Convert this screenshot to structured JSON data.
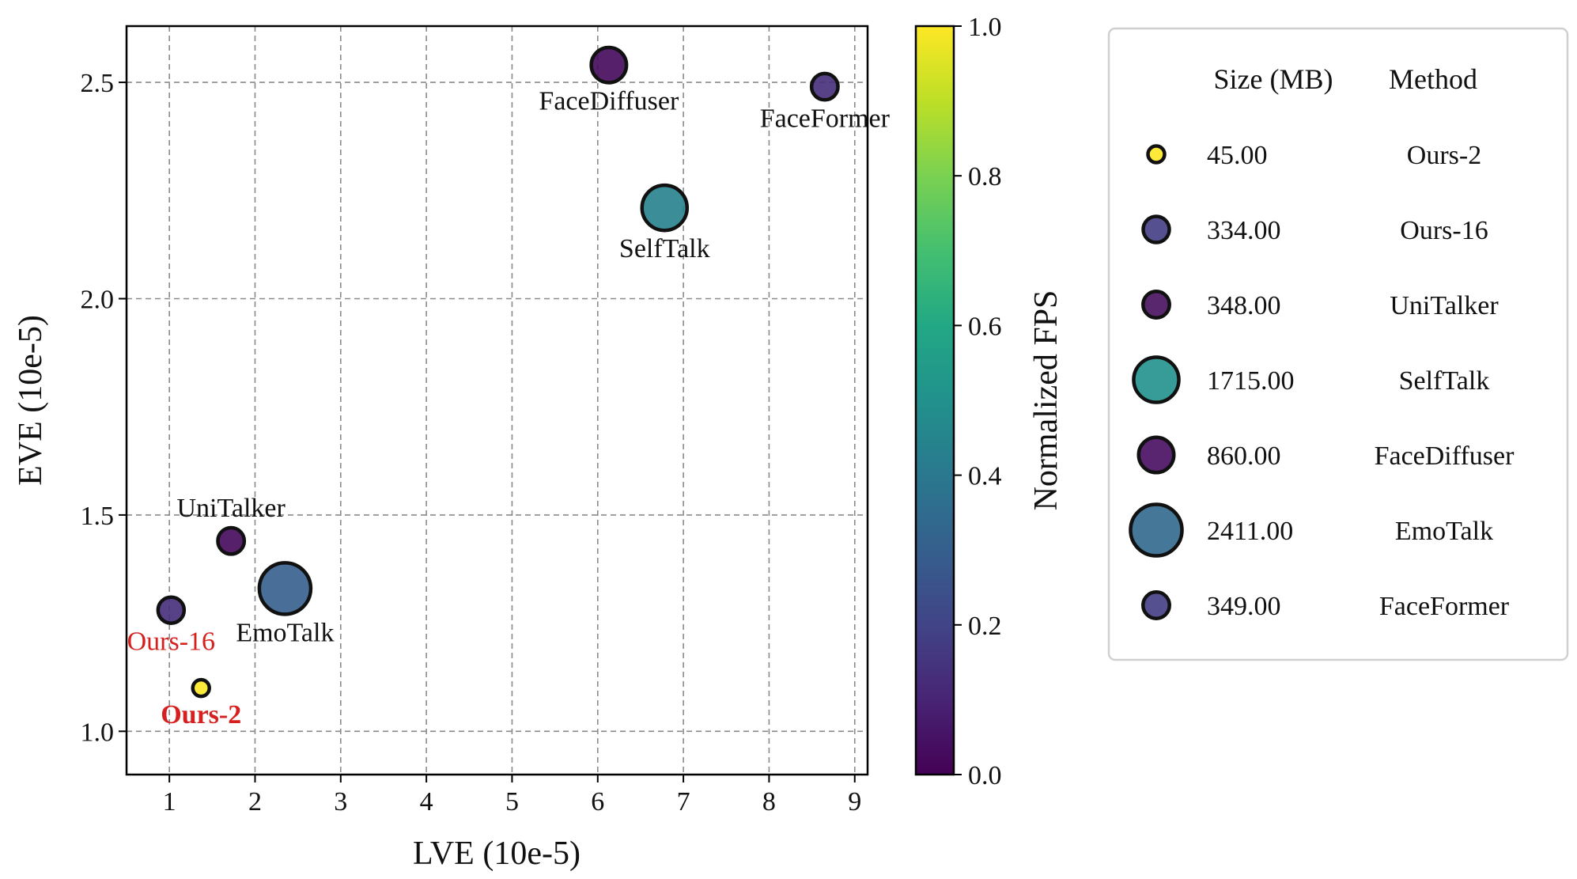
{
  "chart_data": {
    "type": "scatter",
    "title": "",
    "xlabel": "LVE (10e-5)",
    "ylabel": "EVE (10e-5)",
    "xlim": [
      0.5,
      9.15
    ],
    "ylim": [
      0.9,
      2.63
    ],
    "xticks": [
      "1",
      "2",
      "3",
      "4",
      "5",
      "6",
      "7",
      "8",
      "9"
    ],
    "yticks": [
      "1.0",
      "1.5",
      "2.0",
      "2.5"
    ],
    "grid": true,
    "points": [
      {
        "label": "Ours-2",
        "x": 1.37,
        "y": 1.1,
        "size_mb": 45.0,
        "fps_norm": 1.0,
        "label_color": "#d62020",
        "label_bold": true,
        "label_side": "below"
      },
      {
        "label": "Ours-16",
        "x": 1.02,
        "y": 1.28,
        "size_mb": 334.0,
        "fps_norm": 0.13,
        "label_color": "#d62020",
        "label_bold": false,
        "label_side": "below"
      },
      {
        "label": "UniTalker",
        "x": 1.72,
        "y": 1.44,
        "size_mb": 348.0,
        "fps_norm": 0.02,
        "label_color": "#111111",
        "label_bold": false,
        "label_side": "above"
      },
      {
        "label": "EmoTalk",
        "x": 2.35,
        "y": 1.33,
        "size_mb": 2411.0,
        "fps_norm": 0.3,
        "label_color": "#111111",
        "label_bold": false,
        "label_side": "below"
      },
      {
        "label": "FaceDiffuser",
        "x": 6.13,
        "y": 2.54,
        "size_mb": 860.0,
        "fps_norm": 0.02,
        "label_color": "#111111",
        "label_bold": false,
        "label_side": "below"
      },
      {
        "label": "SelfTalk",
        "x": 6.78,
        "y": 2.21,
        "size_mb": 1715.0,
        "fps_norm": 0.44,
        "label_color": "#111111",
        "label_bold": false,
        "label_side": "below"
      },
      {
        "label": "FaceFormer",
        "x": 8.65,
        "y": 2.49,
        "size_mb": 349.0,
        "fps_norm": 0.13,
        "label_color": "#111111",
        "label_bold": false,
        "label_side": "below"
      }
    ],
    "colorbar": {
      "label": "Normalized FPS",
      "range": [
        0.0,
        1.0
      ],
      "ticks": [
        "0.0",
        "0.2",
        "0.4",
        "0.6",
        "0.8",
        "1.0"
      ],
      "colormap": "viridis"
    },
    "legend": {
      "placement": "right",
      "headers": [
        "Size (MB)",
        "Method"
      ],
      "entries": [
        {
          "size": "45.00",
          "method": "Ours-2",
          "color": "#fde725",
          "size_mb": 45.0
        },
        {
          "size": "334.00",
          "method": "Ours-16",
          "color": "#433e85",
          "size_mb": 334.0
        },
        {
          "size": "348.00",
          "method": "UniTalker",
          "color": "#460f5e",
          "size_mb": 348.0
        },
        {
          "size": "1715.00",
          "method": "SelfTalk",
          "color": "#21918c",
          "size_mb": 1715.0
        },
        {
          "size": "860.00",
          "method": "FaceDiffuser",
          "color": "#470d60",
          "size_mb": 860.0
        },
        {
          "size": "2411.00",
          "method": "EmoTalk",
          "color": "#31688e",
          "size_mb": 2411.0
        },
        {
          "size": "349.00",
          "method": "FaceFormer",
          "color": "#433e85",
          "size_mb": 349.0
        }
      ]
    }
  }
}
